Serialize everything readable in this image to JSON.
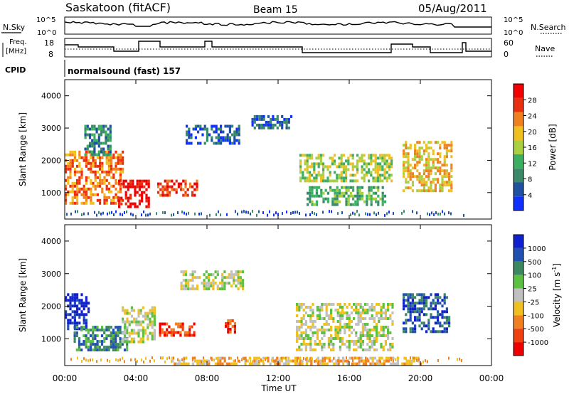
{
  "header": {
    "station": "Saskatoon (fitACF)",
    "beam": "Beam 15",
    "date": "05/Aug/2011"
  },
  "top_panels": {
    "nsky_label": "N.Sky",
    "nsearch_label": "N.Search",
    "nsky_ticks": [
      "10^5",
      "10^0"
    ],
    "nsearch_ticks": [
      "10^5",
      "10^0"
    ],
    "freq_label_1": "Freq.",
    "freq_label_2": "[MHz]",
    "freq_ticks": [
      "18",
      "8"
    ],
    "nave_label": "Nave",
    "nave_ticks": [
      "60",
      "0"
    ],
    "cpid_label": "CPID",
    "cpid_value": "normalsound (fast) 157"
  },
  "colors": {
    "power_scale": [
      "#1030ff",
      "#2050a0",
      "#3a8a6a",
      "#3cb060",
      "#a8d040",
      "#f0c020",
      "#f08020",
      "#e83010",
      "#f00000"
    ],
    "velocity_scale": [
      "#1020d0",
      "#2050b0",
      "#3c8860",
      "#5cc040",
      "#c0c0c0",
      "#f0c020",
      "#f08020",
      "#f04010",
      "#ee0000"
    ]
  },
  "chart_data": [
    {
      "type": "heatmap",
      "name": "power",
      "ylabel": "Slant Range [km]",
      "yticks": [
        "1000",
        "2000",
        "3000",
        "4000"
      ],
      "colorbar_label": "Power [dB]",
      "colorbar_ticks": [
        "4",
        "8",
        "12",
        "16",
        "20",
        "24",
        "28"
      ],
      "xlim": [
        "00:00",
        "24:00"
      ],
      "ylim": [
        180,
        4500
      ],
      "patches": [
        {
          "t0": 0.0,
          "t1": 3.2,
          "r0": 700,
          "r1": 2300,
          "level": 6
        },
        {
          "t0": 3.0,
          "t1": 4.7,
          "r0": 600,
          "r1": 1400,
          "level": 8
        },
        {
          "t0": 1.1,
          "t1": 2.6,
          "r0": 2200,
          "r1": 3100,
          "level": 2
        },
        {
          "t0": 5.2,
          "t1": 7.4,
          "r0": 900,
          "r1": 1400,
          "level": 7
        },
        {
          "t0": 6.8,
          "t1": 9.8,
          "r0": 2500,
          "r1": 3100,
          "level": 1
        },
        {
          "t0": 10.5,
          "t1": 12.8,
          "r0": 3000,
          "r1": 3400,
          "level": 1
        },
        {
          "t0": 13.2,
          "t1": 18.4,
          "r0": 1400,
          "r1": 2200,
          "level": 4
        },
        {
          "t0": 13.6,
          "t1": 18.0,
          "r0": 600,
          "r1": 1200,
          "level": 3
        },
        {
          "t0": 19.0,
          "t1": 21.8,
          "r0": 1100,
          "r1": 2600,
          "level": 5
        }
      ]
    },
    {
      "type": "heatmap",
      "name": "velocity",
      "ylabel": "Slant Range [km]",
      "yticks": [
        "1000",
        "2000",
        "3000",
        "4000"
      ],
      "xlabel": "Time UT",
      "xticks": [
        "00:00",
        "04:00",
        "08:00",
        "12:00",
        "16:00",
        "20:00",
        "00:00"
      ],
      "colorbar_label": "Velocity [m s",
      "colorbar_label_sup": "-1",
      "colorbar_label_end": "]",
      "colorbar_ticks": [
        "1000",
        "500",
        "100",
        "25",
        "-25",
        "-100",
        "-500",
        "-1000"
      ],
      "xlim": [
        "00:00",
        "24:00"
      ],
      "ylim": [
        180,
        4500
      ],
      "patches": [
        {
          "t0": 0.0,
          "t1": 1.4,
          "r0": 1300,
          "r1": 2400,
          "level": 0
        },
        {
          "t0": 0.5,
          "t1": 3.5,
          "r0": 700,
          "r1": 1400,
          "level": 2
        },
        {
          "t0": 3.2,
          "t1": 5.0,
          "r0": 900,
          "r1": 2000,
          "level": 4
        },
        {
          "t0": 5.3,
          "t1": 7.3,
          "r0": 1100,
          "r1": 1500,
          "level": 7
        },
        {
          "t0": 6.5,
          "t1": 10.0,
          "r0": 2500,
          "r1": 3100,
          "level": 4
        },
        {
          "t0": 9.0,
          "t1": 9.6,
          "r0": 1200,
          "r1": 1600,
          "level": 7
        },
        {
          "t0": 13.0,
          "t1": 18.5,
          "r0": 700,
          "r1": 2100,
          "level": 4
        },
        {
          "t0": 19.0,
          "t1": 21.6,
          "r0": 1200,
          "r1": 2400,
          "level": 1
        },
        {
          "t0": 6.0,
          "t1": 20.0,
          "r0": 200,
          "r1": 450,
          "level": 5
        }
      ]
    }
  ]
}
